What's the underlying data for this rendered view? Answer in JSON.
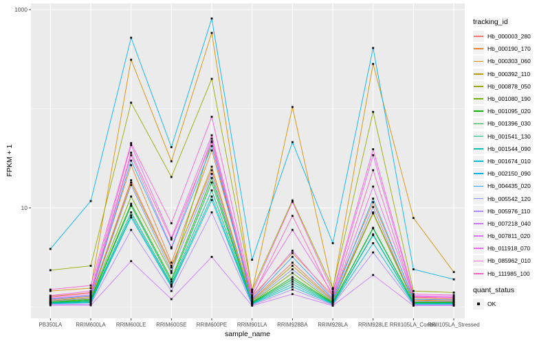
{
  "panel": {
    "bg": "#EBEBEB",
    "grid": "#FFFFFF",
    "tick_text": "#4D4D4D",
    "tick_mark": "#333333",
    "point_color": "#000000"
  },
  "chart_data": {
    "type": "line",
    "title": "",
    "xlabel": "sample_name",
    "ylabel": "FPKM + 1",
    "y_scale": "log10",
    "y_ticks": [
      10,
      1000
    ],
    "y_tick_labels": [
      "10",
      "1000"
    ],
    "y_minor": [
      1,
      100
    ],
    "ylim": [
      0.77,
      1160
    ],
    "grid": true,
    "legend_position": "right",
    "legend_title": "tracking_id",
    "legend2_title": "quant_status",
    "quant_status_label": "OK",
    "point_shape": "small-black-square",
    "categories": [
      "PB350LA",
      "RRIM600LA",
      "RRIM600LE",
      "RRIM600SE",
      "RRIM600PE",
      "RRIM901LA",
      "RRIM928BA",
      "RRIM928LA",
      "RRIM928LE",
      "RRII105LA_Control",
      "RRII105LA_Stressed"
    ],
    "series": [
      {
        "name": "Hb_000003_280",
        "color": "#F8766D",
        "values": [
          1.18,
          1.28,
          19,
          2.6,
          24,
          1.18,
          2.8,
          1.18,
          9.0,
          1.18,
          1.16
        ]
      },
      {
        "name": "Hb_000190_170",
        "color": "#EA8331",
        "values": [
          1.28,
          1.4,
          27,
          2.8,
          38,
          1.28,
          3.5,
          1.3,
          11.4,
          1.24,
          1.2
        ]
      },
      {
        "name": "Hb_000303_060",
        "color": "#D89000",
        "values": [
          1.45,
          1.55,
          312,
          29.5,
          582,
          1.45,
          104,
          1.5,
          283,
          7.9,
          2.25
        ]
      },
      {
        "name": "Hb_000392_110",
        "color": "#BB9D00",
        "values": [
          1.16,
          1.25,
          18,
          2.5,
          26,
          1.16,
          2.6,
          1.16,
          8.9,
          1.16,
          1.14
        ]
      },
      {
        "name": "Hb_000878_050",
        "color": "#97A900",
        "values": [
          2.35,
          2.6,
          115,
          20.5,
          200,
          1.5,
          11.9,
          1.55,
          93,
          1.45,
          1.4
        ]
      },
      {
        "name": "Hb_001080_190",
        "color": "#6BB100",
        "values": [
          1.14,
          1.2,
          13,
          2.2,
          47,
          1.12,
          2.2,
          1.12,
          8.8,
          1.12,
          1.12
        ]
      },
      {
        "name": "Hb_001095_020",
        "color": "#0CB702",
        "values": [
          1.12,
          1.18,
          11,
          1.9,
          20,
          1.11,
          2.0,
          1.11,
          6.3,
          1.11,
          1.11
        ]
      },
      {
        "name": "Hb_001396_030",
        "color": "#00BC51",
        "values": [
          1.11,
          1.16,
          10.5,
          1.8,
          18,
          1.1,
          1.9,
          1.1,
          6.2,
          1.1,
          1.1
        ]
      },
      {
        "name": "Hb_001541_130",
        "color": "#00C087",
        "values": [
          1.1,
          1.14,
          9.0,
          1.7,
          15,
          1.09,
          1.8,
          1.09,
          5.4,
          1.09,
          1.09
        ]
      },
      {
        "name": "Hb_001544_090",
        "color": "#00C0B2",
        "values": [
          1.09,
          1.12,
          8.4,
          1.65,
          13,
          1.08,
          1.7,
          1.08,
          5.3,
          1.08,
          1.08
        ]
      },
      {
        "name": "Hb_001674_010",
        "color": "#00BBDA",
        "values": [
          1.08,
          1.1,
          8.0,
          1.6,
          12,
          1.07,
          1.6,
          1.07,
          4.4,
          1.07,
          1.07
        ]
      },
      {
        "name": "Hb_002150_090",
        "color": "#00B3F2",
        "values": [
          3.85,
          11.7,
          520,
          41,
          813,
          3.0,
          46,
          4.4,
          410,
          2.4,
          1.9
        ]
      },
      {
        "name": "Hb_004435_020",
        "color": "#29A3FF",
        "values": [
          1.2,
          1.3,
          30,
          3.9,
          42,
          1.2,
          3.2,
          1.2,
          12.4,
          1.2,
          1.18
        ]
      },
      {
        "name": "Hb_005542_120",
        "color": "#7F96FF",
        "values": [
          1.15,
          1.22,
          17,
          2.3,
          22,
          1.14,
          2.4,
          1.14,
          10.2,
          1.14,
          1.13
        ]
      },
      {
        "name": "Hb_005976_110",
        "color": "#AE87FF",
        "values": [
          1.06,
          1.07,
          6.0,
          1.45,
          9.0,
          1.05,
          1.5,
          1.05,
          3.55,
          1.05,
          1.05
        ]
      },
      {
        "name": "Hb_007218_040",
        "color": "#CD79FF",
        "values": [
          1.04,
          1.04,
          2.9,
          1.2,
          3.2,
          1.03,
          1.35,
          1.03,
          2.1,
          1.03,
          1.03
        ]
      },
      {
        "name": "Hb_007811_020",
        "color": "#E36EF6",
        "values": [
          1.22,
          1.33,
          34,
          4.0,
          50,
          1.22,
          3.7,
          1.23,
          16.4,
          1.28,
          1.25
        ]
      },
      {
        "name": "Hb_011918_070",
        "color": "#F166E8",
        "values": [
          1.3,
          1.45,
          43,
          5.0,
          54,
          1.32,
          6.0,
          1.35,
          34,
          1.3,
          1.28
        ]
      },
      {
        "name": "Hb_085962_010",
        "color": "#FB61D7",
        "values": [
          1.5,
          1.65,
          45,
          7.0,
          83,
          1.4,
          11.5,
          1.42,
          39,
          1.35,
          1.32
        ]
      },
      {
        "name": "Hb_111985_100",
        "color": "#FF62BF",
        "values": [
          1.25,
          1.38,
          36,
          4.8,
          46,
          1.26,
          8.3,
          1.27,
          24,
          1.26,
          1.23
        ]
      }
    ]
  }
}
